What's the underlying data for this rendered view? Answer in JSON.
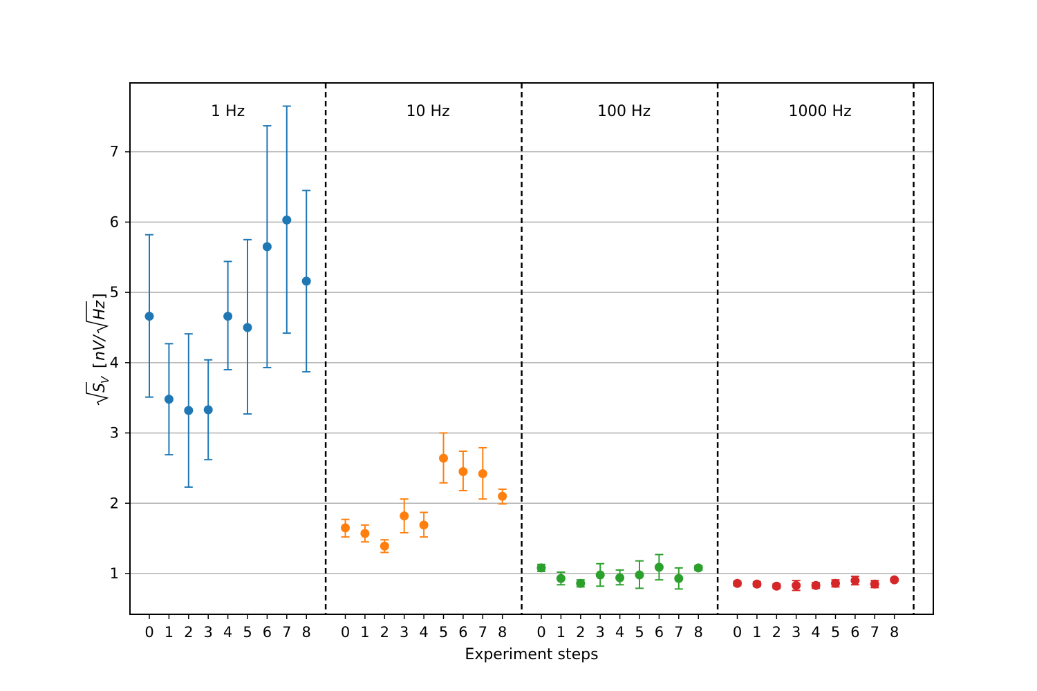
{
  "chart_data": {
    "type": "scatter",
    "xlabel": "Experiment steps",
    "ylabel": "√S_V [nV/√Hz]",
    "ylabel_parts": {
      "sqrt_base": "S",
      "sub": "V",
      "unit_open": "[",
      "unit_num": "nV/",
      "unit_sqrt": "Hz",
      "unit_close": "]"
    },
    "ylim": [
      0.42,
      7.98
    ],
    "yticks": [
      1,
      2,
      3,
      4,
      5,
      6,
      7
    ],
    "grid": "horizontal",
    "step_labels": [
      "0",
      "1",
      "2",
      "3",
      "4",
      "5",
      "6",
      "7",
      "8"
    ],
    "groups": [
      {
        "name": "1 Hz",
        "color": "#1f77b4",
        "values": [
          4.66,
          3.48,
          3.32,
          3.33,
          4.66,
          4.5,
          5.65,
          6.03,
          5.16
        ],
        "err_low": [
          3.51,
          2.69,
          2.23,
          2.62,
          3.9,
          3.27,
          3.93,
          4.42,
          3.87
        ],
        "err_high": [
          5.82,
          4.27,
          4.41,
          4.04,
          5.44,
          5.75,
          7.37,
          7.65,
          6.45
        ]
      },
      {
        "name": "10 Hz",
        "color": "#ff7f0e",
        "values": [
          1.65,
          1.57,
          1.39,
          1.82,
          1.69,
          2.64,
          2.45,
          2.42,
          2.1
        ],
        "err_low": [
          1.52,
          1.45,
          1.3,
          1.58,
          1.52,
          2.29,
          2.18,
          2.06,
          1.99
        ],
        "err_high": [
          1.77,
          1.69,
          1.48,
          2.06,
          1.87,
          3.0,
          2.74,
          2.79,
          2.2
        ]
      },
      {
        "name": "100 Hz",
        "color": "#2ca02c",
        "values": [
          1.08,
          0.93,
          0.86,
          0.98,
          0.94,
          0.98,
          1.09,
          0.93,
          1.08
        ],
        "err_low": [
          1.03,
          0.84,
          0.81,
          0.82,
          0.84,
          0.79,
          0.91,
          0.78,
          1.05
        ],
        "err_high": [
          1.13,
          1.02,
          0.91,
          1.14,
          1.05,
          1.18,
          1.27,
          1.08,
          1.11
        ]
      },
      {
        "name": "1000 Hz",
        "color": "#d62728",
        "values": [
          0.86,
          0.85,
          0.82,
          0.83,
          0.83,
          0.86,
          0.9,
          0.85,
          0.91
        ],
        "err_low": [
          0.83,
          0.82,
          0.79,
          0.76,
          0.79,
          0.81,
          0.84,
          0.8,
          0.89
        ],
        "err_high": [
          0.89,
          0.88,
          0.85,
          0.9,
          0.87,
          0.91,
          0.96,
          0.9,
          0.93
        ]
      }
    ]
  }
}
